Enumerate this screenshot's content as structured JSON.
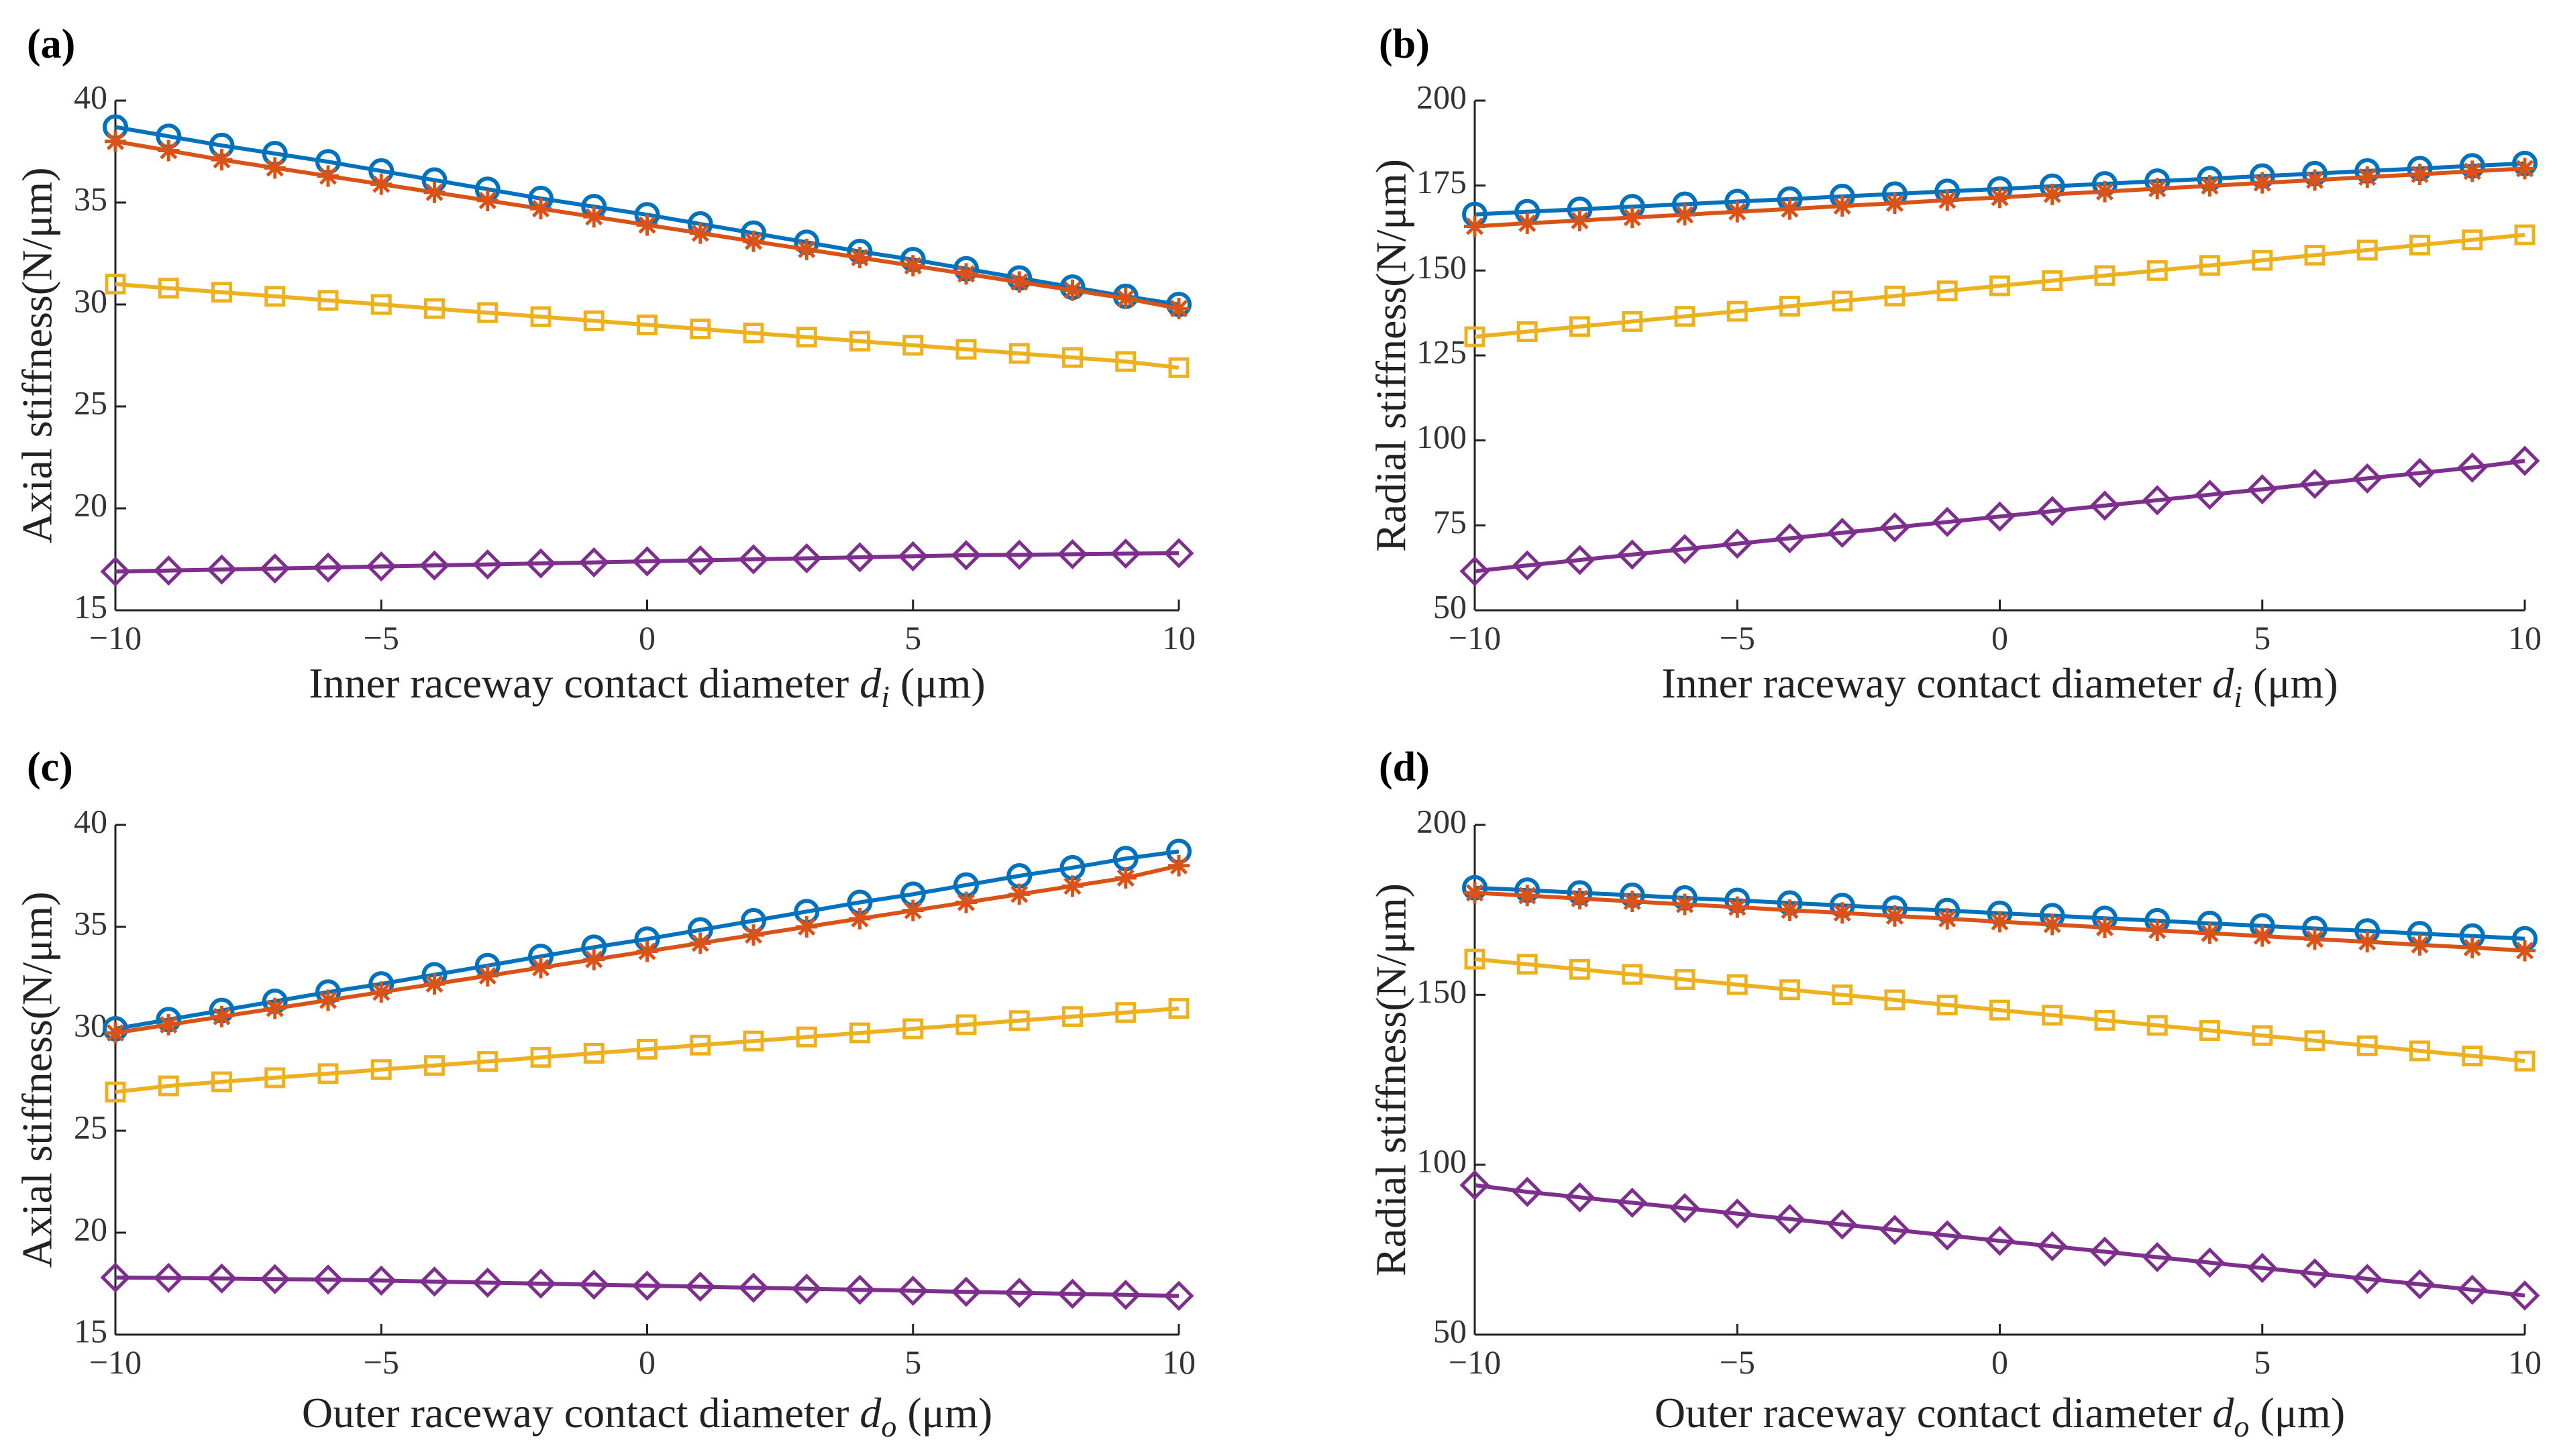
{
  "colors": {
    "circle": "#0072BD",
    "star": "#D95319",
    "square": "#EDB120",
    "diamond": "#7E2F8E"
  },
  "chart_data": [
    {
      "id": "a",
      "type": "line",
      "panel_label": "(a)",
      "ylabel": "Axial stiffness(N/μm)",
      "xlabel_pre": "Inner raceway contact diameter ",
      "xlabel_var": "d",
      "xlabel_sub": "i",
      "xlabel_post": " (μm)",
      "xlim": [
        -10,
        10
      ],
      "ylim": [
        15,
        40
      ],
      "xticks": [
        -10,
        -5,
        0,
        5,
        10
      ],
      "xtick_labels": [
        "−10",
        "−5",
        "0",
        "5",
        "10"
      ],
      "yticks": [
        15,
        20,
        25,
        30,
        35,
        40
      ],
      "ytick_labels": [
        "15",
        "20",
        "25",
        "30",
        "35",
        "40"
      ],
      "x": [
        -10,
        -9,
        -8,
        -7,
        -6,
        -5,
        -4,
        -3,
        -2,
        -1,
        0,
        1,
        2,
        3,
        4,
        5,
        6,
        7,
        8,
        9,
        10
      ],
      "series": [
        {
          "marker": "circle",
          "values": [
            38.7,
            38.25,
            37.8,
            37.4,
            37.0,
            36.55,
            36.1,
            35.65,
            35.2,
            34.8,
            34.4,
            33.95,
            33.5,
            33.05,
            32.6,
            32.2,
            31.75,
            31.3,
            30.85,
            30.4,
            30.0
          ]
        },
        {
          "marker": "star",
          "values": [
            38.0,
            37.55,
            37.1,
            36.7,
            36.3,
            35.9,
            35.5,
            35.1,
            34.7,
            34.3,
            33.9,
            33.5,
            33.1,
            32.7,
            32.3,
            31.9,
            31.5,
            31.1,
            30.7,
            30.3,
            29.8
          ]
        },
        {
          "marker": "square",
          "values": [
            31.0,
            30.8,
            30.6,
            30.4,
            30.2,
            30.0,
            29.8,
            29.6,
            29.4,
            29.2,
            29.0,
            28.8,
            28.6,
            28.4,
            28.2,
            28.0,
            27.8,
            27.6,
            27.4,
            27.2,
            26.9
          ]
        },
        {
          "marker": "diamond",
          "values": [
            16.9,
            16.95,
            17.0,
            17.05,
            17.1,
            17.15,
            17.2,
            17.25,
            17.3,
            17.35,
            17.4,
            17.45,
            17.5,
            17.55,
            17.6,
            17.65,
            17.7,
            17.72,
            17.75,
            17.78,
            17.8
          ]
        }
      ]
    },
    {
      "id": "b",
      "type": "line",
      "panel_label": "(b)",
      "ylabel": "Radial stiffness(N/μm)",
      "xlabel_pre": "Inner raceway contact diameter ",
      "xlabel_var": "d",
      "xlabel_sub": "i",
      "xlabel_post": " (μm)",
      "xlim": [
        -10,
        10
      ],
      "ylim": [
        50,
        200
      ],
      "xticks": [
        -10,
        -5,
        0,
        5,
        10
      ],
      "xtick_labels": [
        "−10",
        "−5",
        "0",
        "5",
        "10"
      ],
      "yticks": [
        50,
        75,
        100,
        125,
        150,
        175,
        200
      ],
      "ytick_labels": [
        "50",
        "75",
        "100",
        "125",
        "150",
        "175",
        "200"
      ],
      "x": [
        -10,
        -9,
        -8,
        -7,
        -6,
        -5,
        -4,
        -3,
        -2,
        -1,
        0,
        1,
        2,
        3,
        4,
        5,
        6,
        7,
        8,
        9,
        10
      ],
      "series": [
        {
          "marker": "circle",
          "values": [
            166.5,
            167.3,
            168.0,
            168.8,
            169.5,
            170.3,
            171.0,
            171.8,
            172.5,
            173.3,
            174.0,
            174.8,
            175.5,
            176.3,
            177.0,
            177.8,
            178.5,
            179.3,
            180.0,
            180.8,
            181.5
          ]
        },
        {
          "marker": "star",
          "values": [
            163.0,
            163.9,
            164.7,
            165.6,
            166.4,
            167.3,
            168.1,
            169.0,
            169.8,
            170.7,
            171.5,
            172.4,
            173.2,
            174.1,
            174.9,
            175.8,
            176.6,
            177.5,
            178.3,
            179.2,
            180.0
          ]
        },
        {
          "marker": "square",
          "values": [
            130.5,
            132.0,
            133.5,
            135.0,
            136.5,
            138.0,
            139.5,
            141.0,
            142.5,
            144.0,
            145.5,
            147.0,
            148.5,
            150.0,
            151.5,
            153.0,
            154.5,
            156.0,
            157.5,
            159.0,
            160.5
          ]
        },
        {
          "marker": "diamond",
          "values": [
            61.5,
            63.2,
            64.8,
            66.4,
            68.0,
            69.6,
            71.2,
            72.8,
            74.4,
            76.0,
            77.6,
            79.2,
            80.8,
            82.4,
            84.0,
            85.6,
            87.2,
            88.8,
            90.4,
            92.0,
            94.0
          ]
        }
      ]
    },
    {
      "id": "c",
      "type": "line",
      "panel_label": "(c)",
      "ylabel": "Axial stiffness(N/μm)",
      "xlabel_pre": "Outer raceway contact diameter ",
      "xlabel_var": "d",
      "xlabel_sub": "o",
      "xlabel_post": " (μm)",
      "xlim": [
        -10,
        10
      ],
      "ylim": [
        15,
        40
      ],
      "xticks": [
        -10,
        -5,
        0,
        5,
        10
      ],
      "xtick_labels": [
        "−10",
        "−5",
        "0",
        "5",
        "10"
      ],
      "yticks": [
        15,
        20,
        25,
        30,
        35,
        40
      ],
      "ytick_labels": [
        "15",
        "20",
        "25",
        "30",
        "35",
        "40"
      ],
      "x": [
        -10,
        -9,
        -8,
        -7,
        -6,
        -5,
        -4,
        -3,
        -2,
        -1,
        0,
        1,
        2,
        3,
        4,
        5,
        6,
        7,
        8,
        9,
        10
      ],
      "series": [
        {
          "marker": "circle",
          "values": [
            30.0,
            30.45,
            30.9,
            31.35,
            31.8,
            32.2,
            32.65,
            33.1,
            33.55,
            34.0,
            34.4,
            34.85,
            35.3,
            35.75,
            36.2,
            36.6,
            37.05,
            37.5,
            37.9,
            38.35,
            38.7
          ]
        },
        {
          "marker": "star",
          "values": [
            29.8,
            30.2,
            30.6,
            31.0,
            31.4,
            31.8,
            32.2,
            32.6,
            33.0,
            33.4,
            33.8,
            34.2,
            34.6,
            35.0,
            35.4,
            35.8,
            36.2,
            36.6,
            37.0,
            37.4,
            38.0
          ]
        },
        {
          "marker": "square",
          "values": [
            26.9,
            27.2,
            27.4,
            27.6,
            27.8,
            28.0,
            28.2,
            28.4,
            28.6,
            28.8,
            29.0,
            29.2,
            29.4,
            29.6,
            29.8,
            30.0,
            30.2,
            30.4,
            30.6,
            30.8,
            31.0
          ]
        },
        {
          "marker": "diamond",
          "values": [
            17.8,
            17.78,
            17.75,
            17.72,
            17.7,
            17.65,
            17.6,
            17.55,
            17.5,
            17.45,
            17.4,
            17.35,
            17.3,
            17.25,
            17.2,
            17.15,
            17.1,
            17.05,
            17.0,
            16.95,
            16.9
          ]
        }
      ]
    },
    {
      "id": "d",
      "type": "line",
      "panel_label": "(d)",
      "ylabel": "Radial stiffness(N/μm)",
      "xlabel_pre": "Outer raceway contact diameter ",
      "xlabel_var": "d",
      "xlabel_sub": "o",
      "xlabel_post": " (μm)",
      "xlim": [
        -10,
        10
      ],
      "ylim": [
        50,
        200
      ],
      "xticks": [
        -10,
        -5,
        0,
        5,
        10
      ],
      "xtick_labels": [
        "−10",
        "−5",
        "0",
        "5",
        "10"
      ],
      "yticks": [
        50,
        100,
        150,
        200
      ],
      "ytick_labels": [
        "50",
        "100",
        "150",
        "200"
      ],
      "x": [
        -10,
        -9,
        -8,
        -7,
        -6,
        -5,
        -4,
        -3,
        -2,
        -1,
        0,
        1,
        2,
        3,
        4,
        5,
        6,
        7,
        8,
        9,
        10
      ],
      "series": [
        {
          "marker": "circle",
          "values": [
            181.5,
            180.8,
            180.0,
            179.3,
            178.5,
            177.8,
            177.0,
            176.3,
            175.5,
            174.8,
            174.0,
            173.3,
            172.5,
            171.8,
            171.0,
            170.3,
            169.5,
            168.8,
            168.0,
            167.3,
            166.5
          ]
        },
        {
          "marker": "star",
          "values": [
            180.0,
            179.2,
            178.3,
            177.5,
            176.6,
            175.8,
            174.9,
            174.1,
            173.2,
            172.4,
            171.5,
            170.7,
            169.8,
            169.0,
            168.1,
            167.3,
            166.4,
            165.6,
            164.7,
            163.9,
            163.0
          ]
        },
        {
          "marker": "square",
          "values": [
            160.5,
            159.0,
            157.5,
            156.0,
            154.5,
            153.0,
            151.5,
            150.0,
            148.5,
            147.0,
            145.5,
            144.0,
            142.5,
            141.0,
            139.5,
            138.0,
            136.5,
            135.0,
            133.5,
            132.0,
            130.5
          ]
        },
        {
          "marker": "diamond",
          "values": [
            94.0,
            92.0,
            90.4,
            88.8,
            87.2,
            85.6,
            84.0,
            82.4,
            80.8,
            79.2,
            77.6,
            76.0,
            74.4,
            72.8,
            71.2,
            69.6,
            68.0,
            66.4,
            64.8,
            63.2,
            61.5
          ]
        }
      ]
    }
  ]
}
